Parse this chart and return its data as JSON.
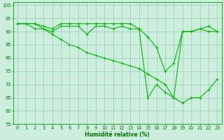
{
  "xlabel": "Humidité relative (%)",
  "bg_color": "#cceedd",
  "grid_color": "#99ccbb",
  "line_color": "#00bb00",
  "line1": {
    "x": [
      0,
      1,
      2,
      3,
      4,
      5,
      6,
      7,
      8,
      9,
      10,
      11,
      12,
      13,
      14,
      15,
      16,
      17,
      18,
      19,
      20,
      21,
      22,
      23
    ],
    "y": [
      93,
      93,
      93,
      92,
      91,
      93,
      93,
      93,
      93,
      93,
      93,
      93,
      93,
      93,
      91,
      88,
      84,
      75,
      78,
      90,
      90,
      91,
      92,
      90
    ]
  },
  "line2": {
    "x": [
      0,
      1,
      2,
      3,
      4,
      5,
      6,
      7,
      8,
      9,
      10,
      11,
      12,
      13,
      14,
      15,
      16,
      17,
      18,
      19,
      20,
      21,
      22,
      23
    ],
    "y": [
      93,
      93,
      93,
      91,
      90,
      92,
      92,
      92,
      89,
      92,
      92,
      91,
      92,
      91,
      91,
      65,
      70,
      67,
      65,
      90,
      90,
      91,
      90,
      90
    ]
  },
  "line3": {
    "x": [
      0,
      1,
      2,
      3,
      4,
      5,
      6,
      7,
      8,
      9,
      10,
      11,
      12,
      13,
      14,
      15,
      16,
      17,
      18,
      19,
      20,
      21,
      22,
      23
    ],
    "y": [
      93,
      93,
      91,
      91,
      89,
      87,
      85,
      84,
      82,
      81,
      80,
      79,
      78,
      77,
      76,
      74,
      72,
      70,
      65,
      63,
      65,
      65,
      68,
      72
    ]
  },
  "ylim": [
    55,
    101
  ],
  "xlim": [
    -0.5,
    23.5
  ],
  "yticks": [
    55,
    60,
    65,
    70,
    75,
    80,
    85,
    90,
    95,
    100
  ],
  "xticks": [
    0,
    1,
    2,
    3,
    4,
    5,
    6,
    7,
    8,
    9,
    10,
    11,
    12,
    13,
    14,
    15,
    16,
    17,
    18,
    19,
    20,
    21,
    22,
    23
  ],
  "xlabel_fontsize": 5.5,
  "tick_fontsize": 4.8,
  "lw": 0.8,
  "ms": 2.5
}
